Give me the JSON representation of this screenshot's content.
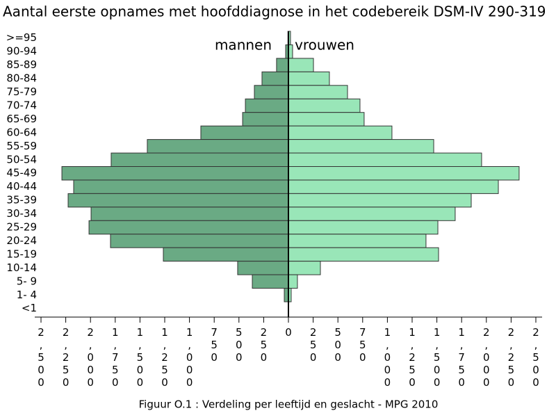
{
  "chart_data": {
    "type": "population-pyramid",
    "title": "Aantal eerste opnames met hoofddiagnose in het codebereik DSM-IV 290-319",
    "caption": "Figuur O.1 : Verdeling per leeftijd en geslacht - MPG 2010",
    "categories": [
      ">=95",
      "90-94",
      "85-89",
      "80-84",
      "75-79",
      "70-74",
      "65-69",
      "60-64",
      "55-59",
      "50-54",
      "45-49",
      "40-44",
      "35-39",
      "30-34",
      "25-29",
      "20-24",
      "15-19",
      "10-14",
      "5- 9",
      "1- 4",
      "<1"
    ],
    "series": [
      {
        "name": "mannen",
        "color": "#6aaa84",
        "values": [
          5,
          28,
          120,
          267,
          344,
          435,
          463,
          885,
          1426,
          1791,
          2289,
          2170,
          2226,
          1994,
          2015,
          1798,
          1264,
          513,
          365,
          42,
          3
        ]
      },
      {
        "name": "vrouwen",
        "color": "#99e6b8",
        "values": [
          21,
          42,
          253,
          414,
          597,
          723,
          765,
          1046,
          1468,
          1952,
          2331,
          2121,
          1847,
          1685,
          1510,
          1390,
          1517,
          323,
          91,
          28,
          2
        ]
      }
    ],
    "xlim": [
      0,
      2500
    ],
    "xticks": [
      0,
      250,
      500,
      750,
      {
        "value": 1000,
        "label": "1,000"
      },
      {
        "value": 1250,
        "label": "1,250"
      },
      {
        "value": 1500,
        "label": "1,500"
      },
      {
        "value": 1750,
        "label": "1,750"
      },
      {
        "value": 2000,
        "label": "2,000"
      },
      {
        "value": 2250,
        "label": "2,250"
      },
      {
        "value": 2500,
        "label": "2,500"
      }
    ]
  }
}
